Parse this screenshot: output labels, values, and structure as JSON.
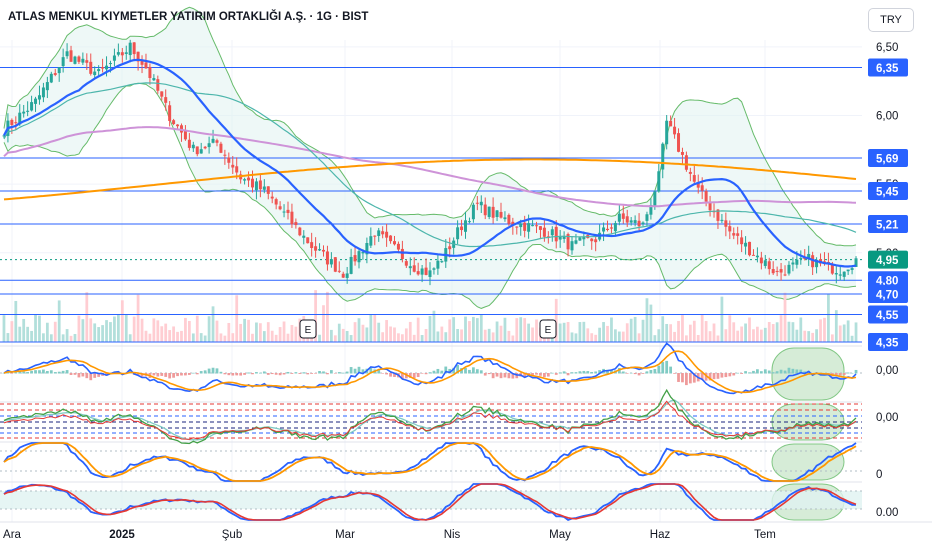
{
  "header": {
    "title": "ATLAS MENKUL KIYMETLER YATIRIM ORTAKLIĞI A.Ş. · 1G · BIST",
    "currency": "TRY"
  },
  "colors": {
    "up": "#26a69a",
    "down": "#ef5350",
    "hline": "#2962ff",
    "label_bg": "#2962ff",
    "last_price": "#089981",
    "ma_fast": "#2962ff",
    "ma_mid": "#ce93d8",
    "ma_slow": "#ff9800",
    "bollinger": "#66bb6a",
    "osc_blue": "#2962ff",
    "osc_orange": "#ff9800",
    "osc_red": "#e53935",
    "osc_green": "#43a047",
    "highlight": "#8bc34a"
  },
  "chart_data": {
    "type": "candlestick",
    "title": "ATLAS MENKUL KIYMETLER YATIRIM ORTAKLIĞI A.Ş. · 1G · BIST",
    "ylim": [
      4.35,
      6.55
    ],
    "y_ticks": [
      "6,50",
      "6,00",
      "5,50",
      "5,00"
    ],
    "x_ticks": [
      "Ara",
      "2025",
      "Şub",
      "Mar",
      "Nis",
      "May",
      "Haz",
      "Tem"
    ],
    "price_levels": [
      {
        "label": "6,35",
        "value": 6.35
      },
      {
        "label": "5,69",
        "value": 5.69
      },
      {
        "label": "5,45",
        "value": 5.45
      },
      {
        "label": "5,21",
        "value": 5.21
      },
      {
        "label": "4,80",
        "value": 4.8
      },
      {
        "label": "4,70",
        "value": 4.7
      },
      {
        "label": "4,55",
        "value": 4.55
      },
      {
        "label": "4,35",
        "value": 4.35
      }
    ],
    "last_price": {
      "label": "4,95",
      "value": 4.95
    },
    "event_markers": [
      "E",
      "E"
    ],
    "close_path": [
      [
        0,
        5.9
      ],
      [
        8,
        6.1
      ],
      [
        16,
        6.45
      ],
      [
        24,
        6.3
      ],
      [
        32,
        6.5
      ],
      [
        36,
        6.35
      ],
      [
        42,
        6.0
      ],
      [
        48,
        5.75
      ],
      [
        54,
        5.8
      ],
      [
        60,
        5.55
      ],
      [
        66,
        5.45
      ],
      [
        72,
        5.25
      ],
      [
        78,
        5.05
      ],
      [
        82,
        4.95
      ],
      [
        86,
        4.85
      ],
      [
        90,
        5.0
      ],
      [
        94,
        5.15
      ],
      [
        98,
        5.05
      ],
      [
        104,
        4.9
      ],
      [
        108,
        4.85
      ],
      [
        112,
        5.0
      ],
      [
        116,
        5.2
      ],
      [
        120,
        5.35
      ],
      [
        126,
        5.25
      ],
      [
        132,
        5.2
      ],
      [
        138,
        5.15
      ],
      [
        144,
        5.05
      ],
      [
        150,
        5.1
      ],
      [
        156,
        5.25
      ],
      [
        162,
        5.2
      ],
      [
        166,
        5.55
      ],
      [
        168,
        5.95
      ],
      [
        172,
        5.7
      ],
      [
        176,
        5.45
      ],
      [
        180,
        5.3
      ],
      [
        184,
        5.15
      ],
      [
        188,
        5.05
      ],
      [
        192,
        4.95
      ],
      [
        196,
        4.85
      ],
      [
        200,
        4.9
      ],
      [
        204,
        4.95
      ],
      [
        208,
        4.9
      ],
      [
        212,
        4.88
      ],
      [
        216,
        4.95
      ]
    ],
    "oscillator_values": [
      "0,00",
      "0,00",
      "0",
      "0.00"
    ]
  }
}
